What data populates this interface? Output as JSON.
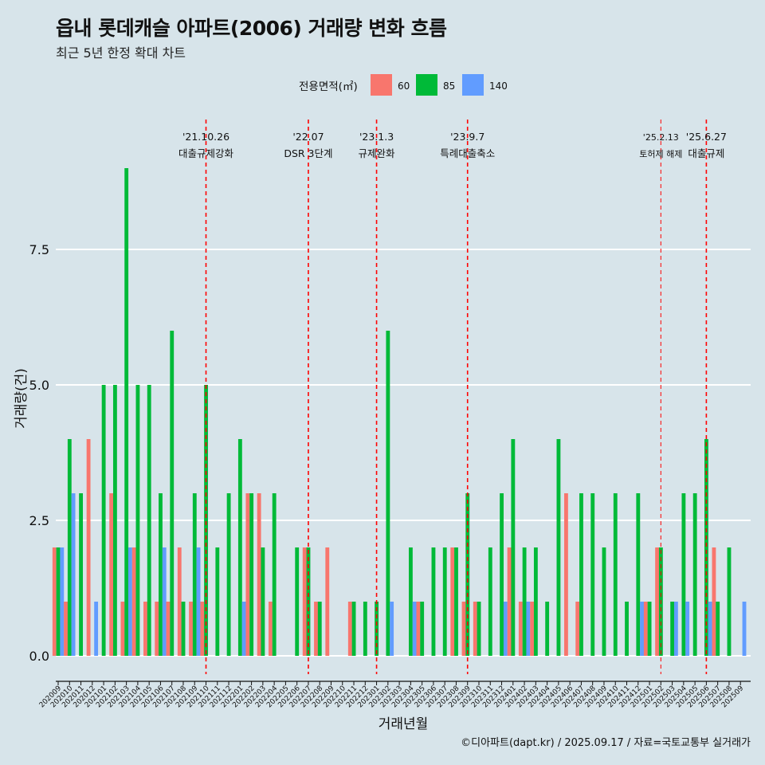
{
  "title": "읍내 롯데캐슬 아파트(2006) 거래량 변화 흐름",
  "subtitle": "최근 5년 한정 확대 차트",
  "caption": "©디아파트(dapt.kr) / 2025.09.17 / 자료=국토교통부 실거래가",
  "chart_data": {
    "type": "bar",
    "xlabel": "거래년월",
    "ylabel": "거래량(건)",
    "ylim": [
      0,
      9.5
    ],
    "yticks": [
      0,
      2.5,
      5,
      7.5
    ],
    "ytick_labels": [
      "0.0",
      "2.5",
      "5.0",
      "7.5"
    ],
    "grid": true,
    "legend": {
      "title": "전용면적(㎡)",
      "position": "top",
      "entries": [
        {
          "name": "60",
          "color": "#F8766D"
        },
        {
          "name": "85",
          "color": "#00BA38"
        },
        {
          "name": "140",
          "color": "#619CFF"
        }
      ]
    },
    "categories": [
      "202009",
      "202010",
      "202011",
      "202012",
      "202101",
      "202102",
      "202103",
      "202104",
      "202105",
      "202106",
      "202107",
      "202108",
      "202109",
      "202110",
      "202111",
      "202112",
      "202201",
      "202202",
      "202203",
      "202204",
      "202205",
      "202206",
      "202207",
      "202208",
      "202209",
      "202210",
      "202211",
      "202212",
      "202301",
      "202302",
      "202303",
      "202304",
      "202305",
      "202306",
      "202307",
      "202308",
      "202309",
      "202310",
      "202311",
      "202312",
      "202401",
      "202402",
      "202403",
      "202404",
      "202405",
      "202406",
      "202407",
      "202408",
      "202409",
      "202410",
      "202411",
      "202412",
      "202501",
      "202502",
      "202503",
      "202504",
      "202505",
      "202506",
      "202507",
      "202508",
      "202509"
    ],
    "series": [
      {
        "name": "60",
        "color": "#F8766D",
        "values": [
          2,
          1,
          0,
          4,
          0,
          3,
          1,
          2,
          1,
          1,
          1,
          2,
          1,
          1,
          0,
          0,
          0,
          3,
          3,
          1,
          0,
          0,
          2,
          1,
          2,
          0,
          1,
          0,
          0,
          0,
          0,
          0,
          1,
          0,
          0,
          2,
          1,
          1,
          0,
          0,
          2,
          1,
          1,
          0,
          0,
          3,
          1,
          0,
          0,
          0,
          0,
          0,
          1,
          2,
          0,
          0,
          0,
          0,
          2,
          0,
          0
        ]
      },
      {
        "name": "85",
        "color": "#00BA38",
        "values": [
          2,
          4,
          3,
          0,
          5,
          5,
          9,
          5,
          5,
          3,
          6,
          1,
          3,
          5,
          2,
          3,
          4,
          3,
          2,
          3,
          0,
          2,
          2,
          1,
          0,
          0,
          1,
          1,
          1,
          6,
          0,
          2,
          1,
          2,
          2,
          2,
          3,
          1,
          2,
          3,
          4,
          2,
          2,
          1,
          4,
          0,
          3,
          3,
          2,
          3,
          1,
          3,
          1,
          2,
          1,
          3,
          3,
          4,
          1,
          2,
          0
        ]
      },
      {
        "name": "140",
        "color": "#619CFF",
        "values": [
          2,
          3,
          0,
          1,
          0,
          0,
          2,
          0,
          0,
          2,
          0,
          0,
          2,
          0,
          0,
          0,
          1,
          0,
          0,
          0,
          0,
          0,
          0,
          0,
          0,
          0,
          0,
          0,
          0,
          1,
          0,
          1,
          0,
          0,
          0,
          0,
          0,
          0,
          0,
          1,
          0,
          1,
          0,
          0,
          0,
          0,
          0,
          0,
          0,
          0,
          0,
          1,
          0,
          0,
          1,
          1,
          0,
          1,
          0,
          0,
          1
        ]
      }
    ],
    "annotations": [
      {
        "category": "202110",
        "date": "'21.10.26",
        "label": "대출규제강화"
      },
      {
        "category": "202207",
        "date": "'22.07",
        "label": "DSR 3단계"
      },
      {
        "category": "202301",
        "date": "'23.1.3",
        "label": "규제완화"
      },
      {
        "category": "202309",
        "date": "'23.9.7",
        "label": "특례대출축소"
      },
      {
        "category": "202502",
        "date": "'25.2.13",
        "label": "토허제 해제"
      },
      {
        "category": "202506",
        "date": "'25.6.27",
        "label": "대출규제"
      }
    ]
  }
}
